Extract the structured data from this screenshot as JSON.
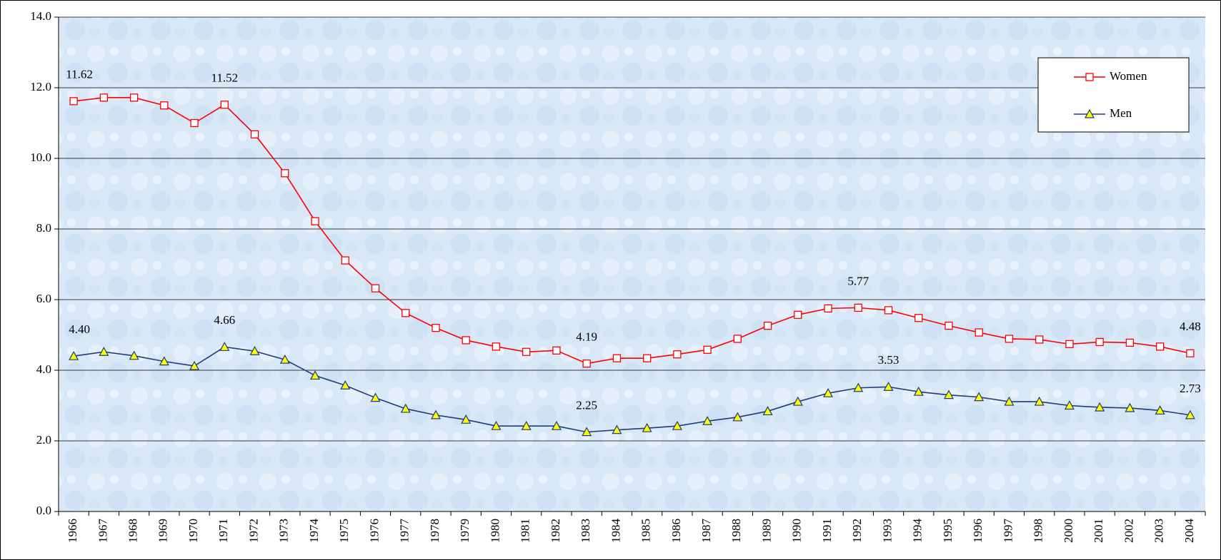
{
  "chart_data": {
    "type": "line",
    "categories": [
      "1966",
      "1967",
      "1968",
      "1969",
      "1970",
      "1971",
      "1972",
      "1973",
      "1974",
      "1975",
      "1976",
      "1977",
      "1978",
      "1979",
      "1980",
      "1981",
      "1982",
      "1983",
      "1984",
      "1985",
      "1986",
      "1987",
      "1988",
      "1989",
      "1990",
      "1991",
      "1992",
      "1993",
      "1994",
      "1995",
      "1996",
      "1997",
      "1998",
      "2000",
      "2001",
      "2002",
      "2003",
      "2004"
    ],
    "series": [
      {
        "name": "Women",
        "color": "#ff0000",
        "marker": "square",
        "marker_fill": "#ffffff",
        "values": [
          11.62,
          11.72,
          11.72,
          11.5,
          11.0,
          11.52,
          10.68,
          9.58,
          8.22,
          7.11,
          6.32,
          5.62,
          5.2,
          4.85,
          4.67,
          4.52,
          4.56,
          4.19,
          4.34,
          4.34,
          4.45,
          4.58,
          4.89,
          5.26,
          5.57,
          5.75,
          5.77,
          5.7,
          5.48,
          5.26,
          5.07,
          4.89,
          4.87,
          4.74,
          4.8,
          4.78,
          4.67,
          4.48
        ],
        "value_labels": [
          "11.62",
          null,
          null,
          null,
          null,
          "11.52",
          null,
          null,
          null,
          null,
          null,
          null,
          null,
          null,
          null,
          null,
          null,
          "4.19",
          null,
          null,
          null,
          null,
          null,
          null,
          null,
          null,
          "5.77",
          null,
          null,
          null,
          null,
          null,
          null,
          null,
          null,
          null,
          null,
          "4.48"
        ]
      },
      {
        "name": "Men",
        "color": "#1f3a78",
        "marker": "triangle",
        "marker_fill": "#ffff00",
        "values": [
          4.4,
          4.52,
          4.41,
          4.25,
          4.12,
          4.66,
          4.54,
          4.3,
          3.85,
          3.57,
          3.22,
          2.91,
          2.73,
          2.6,
          2.42,
          2.42,
          2.42,
          2.25,
          2.31,
          2.36,
          2.42,
          2.56,
          2.67,
          2.84,
          3.11,
          3.35,
          3.5,
          3.53,
          3.39,
          3.3,
          3.24,
          3.11,
          3.11,
          3.0,
          2.95,
          2.93,
          2.86,
          2.73
        ],
        "value_labels": [
          "4.40",
          null,
          null,
          null,
          null,
          "4.66",
          null,
          null,
          null,
          null,
          null,
          null,
          null,
          null,
          null,
          null,
          null,
          "2.25",
          null,
          null,
          null,
          null,
          null,
          null,
          null,
          null,
          null,
          "3.53",
          null,
          null,
          null,
          null,
          null,
          null,
          null,
          null,
          null,
          "2.73"
        ]
      }
    ],
    "ylim": [
      0,
      14
    ],
    "yticks": [
      {
        "value": 0,
        "label": "0.0"
      },
      {
        "value": 2,
        "label": "2.0"
      },
      {
        "value": 4,
        "label": "4.0"
      },
      {
        "value": 6,
        "label": "6.0"
      },
      {
        "value": 8,
        "label": "8.0"
      },
      {
        "value": 10,
        "label": "10.0"
      },
      {
        "value": 12,
        "label": "12.0"
      },
      {
        "value": 14,
        "label": "14.0"
      }
    ],
    "grid": true,
    "legend": "upper right"
  }
}
